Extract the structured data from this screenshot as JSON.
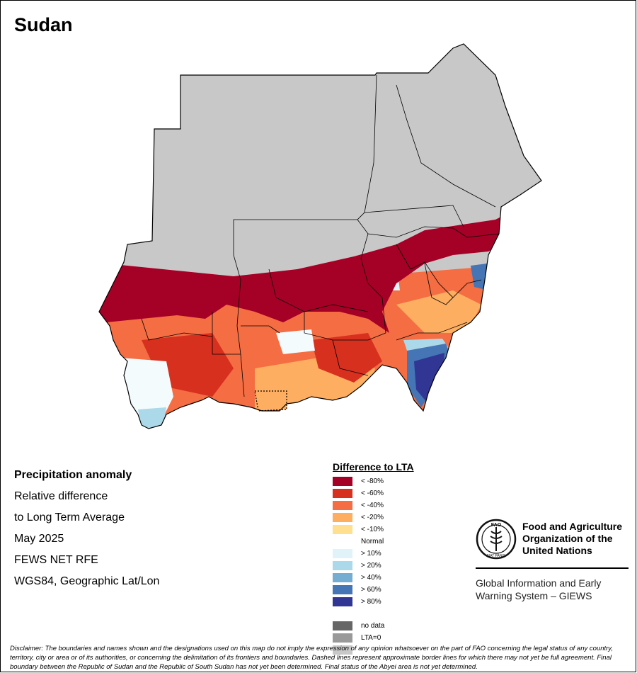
{
  "title": "Sudan",
  "info": {
    "heading": "Precipitation anomaly",
    "lines": [
      "Relative difference",
      "to Long Term Average",
      "May 2025",
      "FEWS NET RFE",
      "WGS84, Geographic Lat/Lon"
    ]
  },
  "legend": {
    "title": "Difference to LTA",
    "items": [
      {
        "label": "< -80%",
        "color": "#a50026"
      },
      {
        "label": "< -60%",
        "color": "#d7301f"
      },
      {
        "label": "< -40%",
        "color": "#f46d43"
      },
      {
        "label": "< -20%",
        "color": "#fdae61"
      },
      {
        "label": "< -10%",
        "color": "#fee090"
      },
      {
        "label": "Normal",
        "color": "#ffffff"
      },
      {
        "label": "> 10%",
        "color": "#e0f3f8"
      },
      {
        "label": "> 20%",
        "color": "#abd9e9"
      },
      {
        "label": "> 40%",
        "color": "#74add1"
      },
      {
        "label": "> 60%",
        "color": "#4575b4"
      },
      {
        "label": "> 80%",
        "color": "#313695"
      },
      {
        "label": "",
        "color": "#ffffff"
      },
      {
        "label": "no data",
        "color": "#666666"
      },
      {
        "label": "LTA=0",
        "color": "#999999"
      },
      {
        "label": "",
        "color": "#c8c8c8"
      }
    ]
  },
  "fao": {
    "name_lines": [
      "Food and Agriculture",
      "Organization of the",
      "United Nations"
    ],
    "giews_lines": [
      "Global Information and Early",
      "Warning System – GIEWS"
    ],
    "logo_text": "FIAT PANIS"
  },
  "disclaimer": "Disclaimer: The boundaries and names shown and the designations used on this map do not imply the expression of any opinion whatsoever on the part of FAO concerning the legal status of any country, territory, city or area or of its authorities, or concerning the delimitation of its frontiers and boundaries. Dashed lines represent approximate border lines for which there may not yet be full agreement. Final boundary between the Republic of Sudan and the Republic of South Sudan has not yet been determined. Final status of the Abyei area is not yet determined.",
  "colors": {
    "land_no_rain": "#c8c8c8",
    "border": "#000000"
  }
}
